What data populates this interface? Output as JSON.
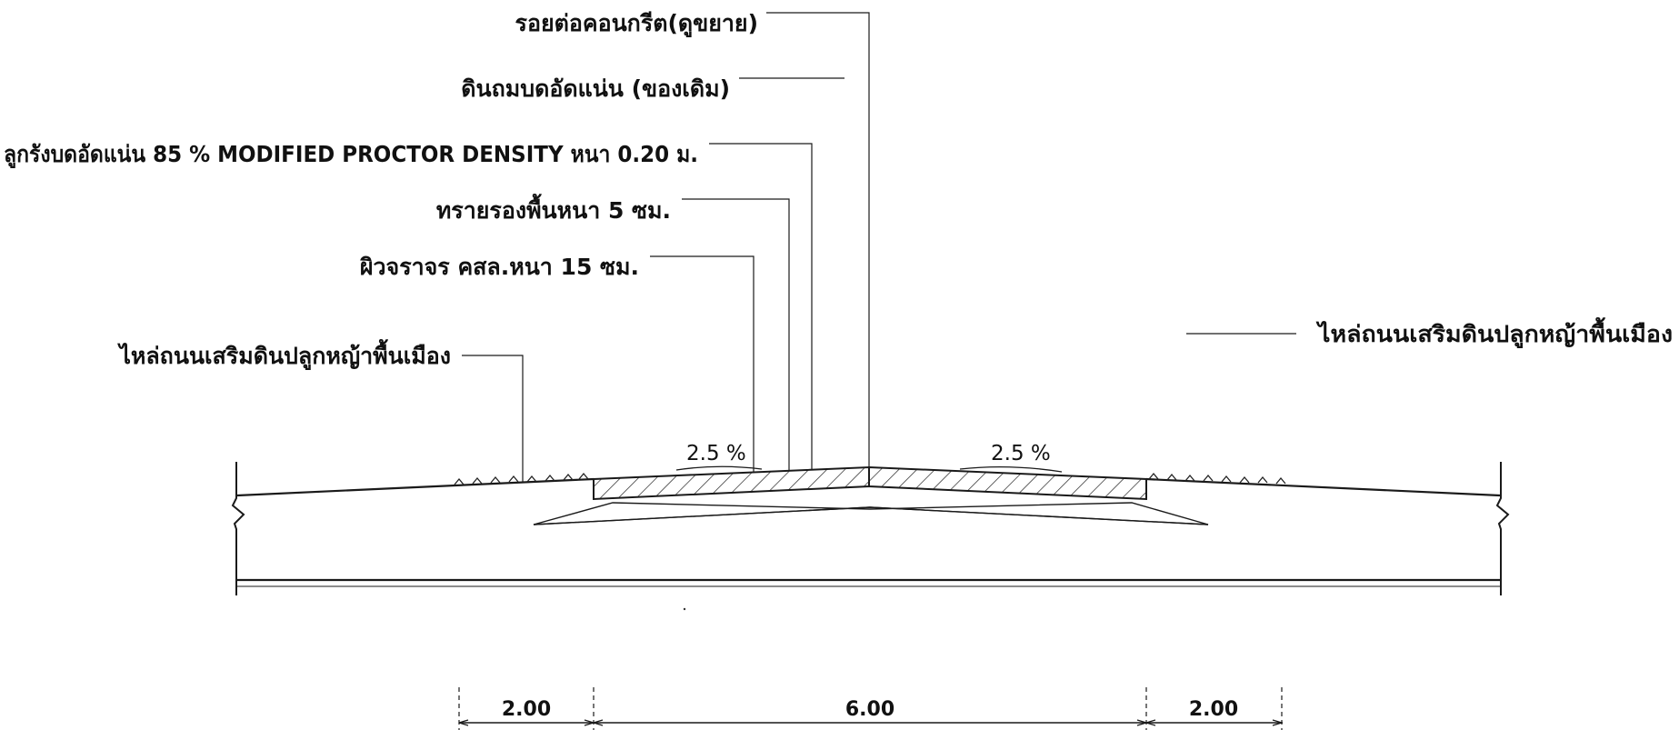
{
  "labels": {
    "joint": "รอยต่อคอนกรีต(ดูขยาย)",
    "existing_soil": "ดินถมบดอัดแน่น (ของเดิม)",
    "laterite": "ลูกรังบดอัดแน่น 85 % MODIFIED PROCTOR DENSITY หนา 0.20 ม.",
    "sand": "ทรายรองพื้นหนา 5 ซม.",
    "surface": "ผิวจราจร คสล.หนา 15 ซม.",
    "shoulder_left": "ไหล่ถนนเสริมดินปลูกหญ้าพื้นเมือง",
    "shoulder_right": "ไหล่ถนนเสริมดินปลูกหญ้าพื้นเมือง"
  },
  "slopes": {
    "left": "2.5 %",
    "right": "2.5 %"
  },
  "dimensions": {
    "shoulder_left": "2.00",
    "carriageway": "6.00",
    "shoulder_right": "2.00"
  },
  "colors": {
    "line": "#1a1a1a",
    "text": "#111111",
    "background": "#ffffff"
  }
}
